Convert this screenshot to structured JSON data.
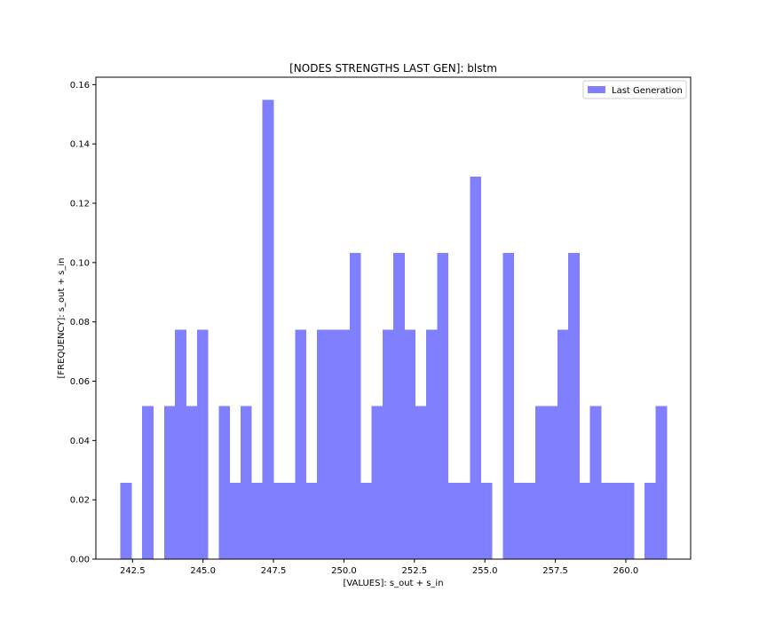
{
  "chart_data": {
    "type": "bar",
    "title": "[NODES STRENGTHS LAST GEN]: blstm",
    "xlabel": "[VALUES]: s_out + s_in",
    "ylabel": "[FREQUENCY]: s_out + s_in",
    "xlim": [
      241.2,
      262.3
    ],
    "ylim": [
      0,
      0.1625
    ],
    "xticks": [
      242.5,
      245.0,
      247.5,
      250.0,
      252.5,
      255.0,
      257.5,
      260.0
    ],
    "xtick_labels": [
      "242.5",
      "245.0",
      "247.5",
      "250.0",
      "252.5",
      "255.0",
      "257.5",
      "260.0"
    ],
    "yticks": [
      0.0,
      0.02,
      0.04,
      0.06,
      0.08,
      0.1,
      0.12,
      0.14,
      0.16
    ],
    "ytick_labels": [
      "0.00",
      "0.02",
      "0.04",
      "0.06",
      "0.08",
      "0.10",
      "0.12",
      "0.14",
      "0.16"
    ],
    "bin_start": 242.07,
    "bin_width": 0.3875,
    "color": "#8080ff",
    "legend": {
      "position": "top-right"
    },
    "series": [
      {
        "name": "Last Generation",
        "values": [
          0.0258,
          0,
          0.0516,
          0,
          0.0516,
          0.0774,
          0.0516,
          0.0774,
          0,
          0.0516,
          0.0258,
          0.0516,
          0.0258,
          0.1548,
          0.0258,
          0.0258,
          0.0774,
          0.0258,
          0.0774,
          0.0774,
          0.0774,
          0.1032,
          0.0258,
          0.0516,
          0.0774,
          0.1032,
          0.0774,
          0.0516,
          0.0774,
          0.1032,
          0.0258,
          0.0258,
          0.129,
          0.0258,
          0,
          0.1032,
          0.0258,
          0.0258,
          0.0516,
          0.0516,
          0.0774,
          0.1032,
          0.0258,
          0.0516,
          0.0258,
          0.0258,
          0.0258,
          0,
          0.0258,
          0.0516
        ]
      }
    ]
  }
}
